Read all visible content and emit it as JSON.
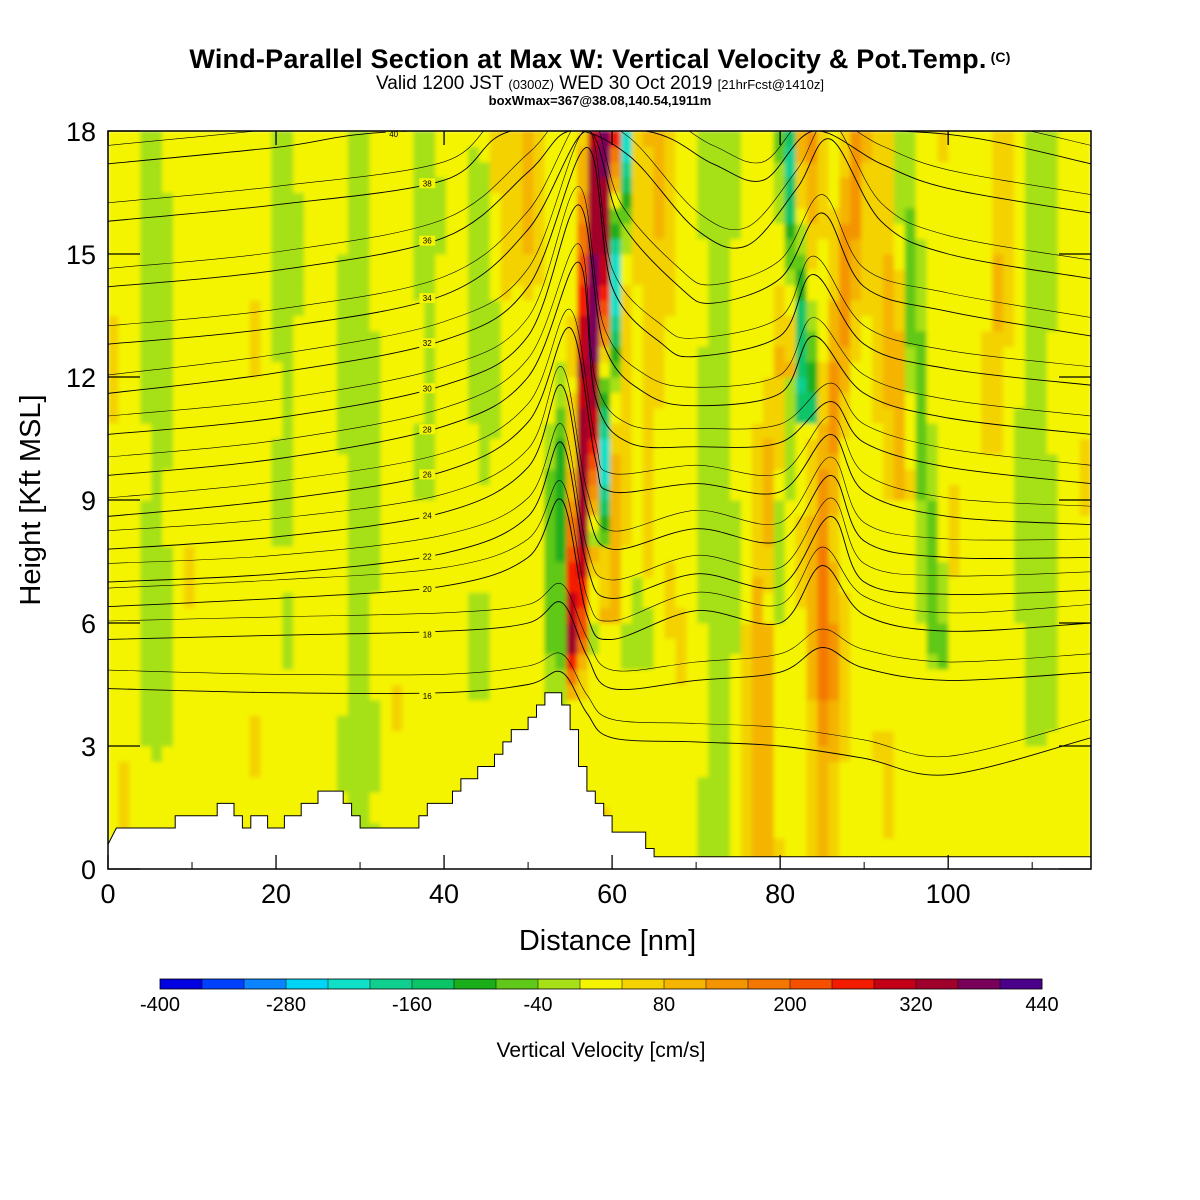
{
  "chart_data": {
    "type": "heatmap",
    "title": "Wind-Parallel Section at Max W: Vertical Velocity & Pot.Temp.",
    "title_mark": "(C)",
    "subtitle": {
      "valid_prefix": "Valid 1200 JST",
      "utc": "(0300Z)",
      "date": "WED 30 Oct 2019",
      "forecast": "[21hrFcst@1410z]"
    },
    "subtitle2": "boxWmax=367@38.08,140.54,1911m",
    "xlabel": "Distance [nm]",
    "ylabel": "Height [Kft MSL]",
    "xlim": [
      0,
      117
    ],
    "ylim": [
      0,
      18
    ],
    "x_ticks": [
      "0",
      "20",
      "40",
      "60",
      "80",
      "100"
    ],
    "y_ticks": [
      "0",
      "3",
      "6",
      "9",
      "12",
      "15",
      "18"
    ],
    "colorbar": {
      "label": "Vertical Velocity [cm/s]",
      "range": [
        -400,
        440
      ],
      "step": 40,
      "tick_labels": [
        "-400",
        "-280",
        "-160",
        "-40",
        "80",
        "200",
        "320",
        "440"
      ],
      "colors": [
        "#0000e0",
        "#0040ff",
        "#0a84ff",
        "#00d4f4",
        "#10e0c8",
        "#10d090",
        "#0cc468",
        "#1aae1a",
        "#60c818",
        "#a6e016",
        "#f4f400",
        "#f4d200",
        "#f4b400",
        "#f49400",
        "#f47800",
        "#f45000",
        "#f41c00",
        "#c40018",
        "#a0002c",
        "#78005a",
        "#4a0088"
      ]
    },
    "terrain_profile_kft": [
      [
        0,
        0.6
      ],
      [
        1,
        1.0
      ],
      [
        8,
        1.0
      ],
      [
        8,
        1.3
      ],
      [
        13,
        1.3
      ],
      [
        13,
        1.6
      ],
      [
        15,
        1.6
      ],
      [
        15,
        1.3
      ],
      [
        16,
        1.3
      ],
      [
        16,
        1.0
      ],
      [
        17,
        1.0
      ],
      [
        17,
        1.3
      ],
      [
        19,
        1.3
      ],
      [
        19,
        1.0
      ],
      [
        21,
        1.0
      ],
      [
        21,
        1.3
      ],
      [
        23,
        1.3
      ],
      [
        23,
        1.6
      ],
      [
        25,
        1.6
      ],
      [
        25,
        1.9
      ],
      [
        28,
        1.9
      ],
      [
        28,
        1.6
      ],
      [
        29,
        1.6
      ],
      [
        29,
        1.3
      ],
      [
        30,
        1.3
      ],
      [
        30,
        1.0
      ],
      [
        37,
        1.0
      ],
      [
        37,
        1.3
      ],
      [
        38,
        1.3
      ],
      [
        38,
        1.6
      ],
      [
        41,
        1.6
      ],
      [
        41,
        1.9
      ],
      [
        42,
        1.9
      ],
      [
        42,
        2.2
      ],
      [
        44,
        2.2
      ],
      [
        44,
        2.5
      ],
      [
        46,
        2.5
      ],
      [
        46,
        2.8
      ],
      [
        47,
        2.8
      ],
      [
        47,
        3.1
      ],
      [
        48,
        3.1
      ],
      [
        48,
        3.4
      ],
      [
        50,
        3.4
      ],
      [
        50,
        3.7
      ],
      [
        51,
        3.7
      ],
      [
        51,
        4.0
      ],
      [
        52,
        4.0
      ],
      [
        52,
        4.3
      ],
      [
        54,
        4.3
      ],
      [
        54,
        4.0
      ],
      [
        55,
        4.0
      ],
      [
        55,
        3.4
      ],
      [
        56,
        3.4
      ],
      [
        56,
        2.5
      ],
      [
        57,
        2.5
      ],
      [
        57,
        1.9
      ],
      [
        58,
        1.9
      ],
      [
        58,
        1.6
      ],
      [
        59,
        1.6
      ],
      [
        59,
        1.3
      ],
      [
        60,
        1.3
      ],
      [
        60,
        0.9
      ],
      [
        64,
        0.9
      ],
      [
        64,
        0.5
      ],
      [
        65,
        0.5
      ],
      [
        65,
        0.3
      ],
      [
        117,
        0.3
      ]
    ],
    "theta_contours_c": [
      {
        "value": "16",
        "points": [
          [
            0,
            4.4
          ],
          [
            20,
            4.3
          ],
          [
            40,
            4.3
          ],
          [
            50,
            4.5
          ],
          [
            54,
            4.8
          ],
          [
            57,
            3.8
          ],
          [
            60,
            3.2
          ],
          [
            70,
            3.1
          ],
          [
            80,
            3.0
          ],
          [
            90,
            2.7
          ],
          [
            100,
            2.3
          ],
          [
            117,
            3.2
          ]
        ]
      },
      {
        "value": "18",
        "points": [
          [
            0,
            5.6
          ],
          [
            20,
            5.7
          ],
          [
            40,
            5.8
          ],
          [
            50,
            6.0
          ],
          [
            54,
            6.5
          ],
          [
            57,
            5.2
          ],
          [
            60,
            4.4
          ],
          [
            70,
            4.6
          ],
          [
            80,
            4.8
          ],
          [
            85,
            5.4
          ],
          [
            90,
            4.9
          ],
          [
            100,
            4.6
          ],
          [
            117,
            4.8
          ]
        ]
      },
      {
        "value": "20",
        "points": [
          [
            0,
            6.4
          ],
          [
            20,
            6.6
          ],
          [
            40,
            6.9
          ],
          [
            50,
            7.6
          ],
          [
            54,
            9.0
          ],
          [
            57,
            6.2
          ],
          [
            60,
            5.6
          ],
          [
            70,
            6.3
          ],
          [
            80,
            6.0
          ],
          [
            85,
            7.4
          ],
          [
            90,
            6.2
          ],
          [
            100,
            5.8
          ],
          [
            117,
            6.0
          ]
        ]
      },
      {
        "value": "22",
        "points": [
          [
            0,
            7.0
          ],
          [
            20,
            7.2
          ],
          [
            40,
            7.7
          ],
          [
            50,
            8.6
          ],
          [
            54,
            10.4
          ],
          [
            57,
            7.4
          ],
          [
            60,
            6.6
          ],
          [
            70,
            7.2
          ],
          [
            80,
            6.9
          ],
          [
            86,
            8.6
          ],
          [
            90,
            7.0
          ],
          [
            100,
            6.7
          ],
          [
            117,
            6.8
          ]
        ]
      },
      {
        "value": "24",
        "points": [
          [
            0,
            7.8
          ],
          [
            20,
            8.1
          ],
          [
            40,
            8.7
          ],
          [
            50,
            9.8
          ],
          [
            54,
            11.8
          ],
          [
            57,
            8.8
          ],
          [
            60,
            7.8
          ],
          [
            70,
            8.3
          ],
          [
            80,
            8.0
          ],
          [
            86,
            9.6
          ],
          [
            90,
            8.0
          ],
          [
            100,
            7.6
          ],
          [
            117,
            7.6
          ]
        ]
      },
      {
        "value": "26",
        "points": [
          [
            0,
            8.6
          ],
          [
            20,
            9.0
          ],
          [
            40,
            9.7
          ],
          [
            50,
            10.9
          ],
          [
            55,
            13.2
          ],
          [
            58,
            10.0
          ],
          [
            60,
            9.2
          ],
          [
            70,
            9.4
          ],
          [
            80,
            9.2
          ],
          [
            86,
            10.6
          ],
          [
            90,
            9.2
          ],
          [
            100,
            8.6
          ],
          [
            117,
            8.4
          ]
        ]
      },
      {
        "value": "28",
        "points": [
          [
            0,
            9.6
          ],
          [
            20,
            10.0
          ],
          [
            40,
            10.8
          ],
          [
            50,
            12.0
          ],
          [
            56,
            14.8
          ],
          [
            58,
            11.5
          ],
          [
            62,
            10.4
          ],
          [
            70,
            10.3
          ],
          [
            80,
            10.4
          ],
          [
            86,
            11.4
          ],
          [
            90,
            10.4
          ],
          [
            100,
            9.8
          ],
          [
            117,
            9.4
          ]
        ]
      },
      {
        "value": "30",
        "points": [
          [
            0,
            10.6
          ],
          [
            20,
            11.0
          ],
          [
            40,
            11.8
          ],
          [
            50,
            13.0
          ],
          [
            56,
            16.2
          ],
          [
            59,
            12.8
          ],
          [
            64,
            11.6
          ],
          [
            70,
            11.3
          ],
          [
            80,
            11.6
          ],
          [
            84,
            13.0
          ],
          [
            90,
            11.6
          ],
          [
            100,
            11.0
          ],
          [
            117,
            10.6
          ]
        ]
      },
      {
        "value": "32",
        "points": [
          [
            0,
            11.6
          ],
          [
            20,
            12.1
          ],
          [
            40,
            12.9
          ],
          [
            50,
            14.2
          ],
          [
            57,
            17.6
          ],
          [
            60,
            14.2
          ],
          [
            66,
            12.8
          ],
          [
            70,
            12.5
          ],
          [
            80,
            13.0
          ],
          [
            84,
            14.5
          ],
          [
            90,
            12.8
          ],
          [
            100,
            12.2
          ],
          [
            117,
            11.8
          ]
        ]
      },
      {
        "value": "34",
        "points": [
          [
            0,
            12.8
          ],
          [
            20,
            13.2
          ],
          [
            40,
            14.0
          ],
          [
            50,
            15.6
          ],
          [
            57,
            18.0
          ],
          [
            61,
            15.8
          ],
          [
            68,
            14.2
          ],
          [
            72,
            13.8
          ],
          [
            80,
            14.4
          ],
          [
            85,
            16.0
          ],
          [
            90,
            14.2
          ],
          [
            100,
            13.6
          ],
          [
            117,
            13.0
          ]
        ]
      },
      {
        "value": "36",
        "points": [
          [
            0,
            14.2
          ],
          [
            20,
            14.6
          ],
          [
            40,
            15.4
          ],
          [
            50,
            17.0
          ],
          [
            55,
            18.0
          ],
          [
            62,
            17.4
          ],
          [
            70,
            15.6
          ],
          [
            76,
            15.2
          ],
          [
            82,
            16.6
          ],
          [
            86,
            17.8
          ],
          [
            92,
            15.8
          ],
          [
            100,
            15.0
          ],
          [
            117,
            14.4
          ]
        ]
      },
      {
        "value": "38",
        "points": [
          [
            0,
            15.8
          ],
          [
            20,
            16.2
          ],
          [
            40,
            16.8
          ],
          [
            48,
            18.0
          ],
          [
            64,
            18.0
          ],
          [
            72,
            17.2
          ],
          [
            78,
            16.8
          ],
          [
            84,
            18.0
          ],
          [
            92,
            17.2
          ],
          [
            100,
            16.6
          ],
          [
            117,
            16.0
          ]
        ]
      },
      {
        "value": "40",
        "points": [
          [
            0,
            17.2
          ],
          [
            20,
            17.6
          ],
          [
            36,
            18.0
          ],
          [
            76,
            18.0
          ],
          [
            80,
            18.0
          ],
          [
            94,
            18.0
          ],
          [
            104,
            17.8
          ],
          [
            117,
            17.2
          ]
        ]
      }
    ]
  }
}
